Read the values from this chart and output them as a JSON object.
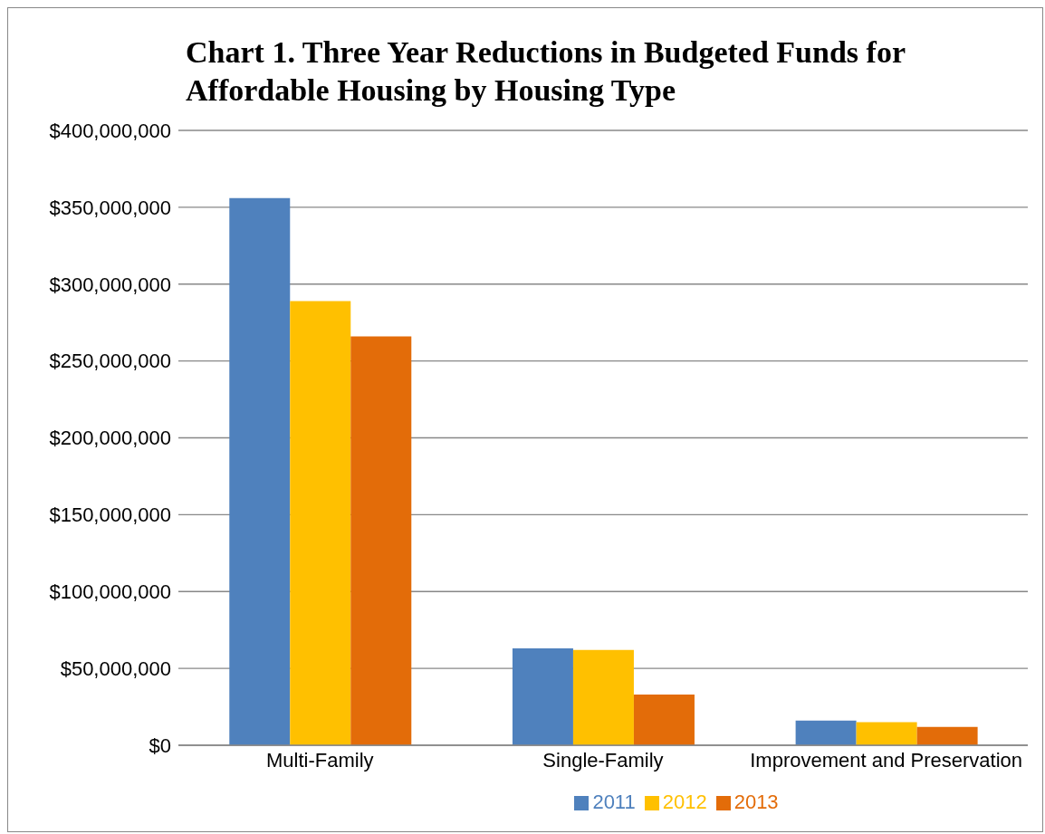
{
  "chart_data": {
    "type": "bar",
    "title": "Chart 1. Three Year Reductions in Budgeted Funds for Affordable Housing by Housing Type",
    "categories": [
      "Multi-Family",
      "Single-Family",
      "Improvement and Preservation"
    ],
    "series": [
      {
        "name": "2011",
        "color": "#4f81bd",
        "values": [
          356000000,
          63000000,
          16000000
        ]
      },
      {
        "name": "2012",
        "color": "#ffc000",
        "values": [
          289000000,
          62000000,
          15000000
        ]
      },
      {
        "name": "2013",
        "color": "#e36c09",
        "values": [
          266000000,
          33000000,
          12000000
        ]
      }
    ],
    "ylim": [
      0,
      400000000
    ],
    "yticks": [
      {
        "value": 0,
        "label": "$0"
      },
      {
        "value": 50000000,
        "label": "$50,000,000"
      },
      {
        "value": 100000000,
        "label": "$100,000,000"
      },
      {
        "value": 150000000,
        "label": "$150,000,000"
      },
      {
        "value": 200000000,
        "label": "$200,000,000"
      },
      {
        "value": 250000000,
        "label": "$250,000,000"
      },
      {
        "value": 300000000,
        "label": "$300,000,000"
      },
      {
        "value": 350000000,
        "label": "$350,000,000"
      },
      {
        "value": 400000000,
        "label": "$400,000,000"
      }
    ],
    "grid": "y",
    "legend": "bottom"
  }
}
